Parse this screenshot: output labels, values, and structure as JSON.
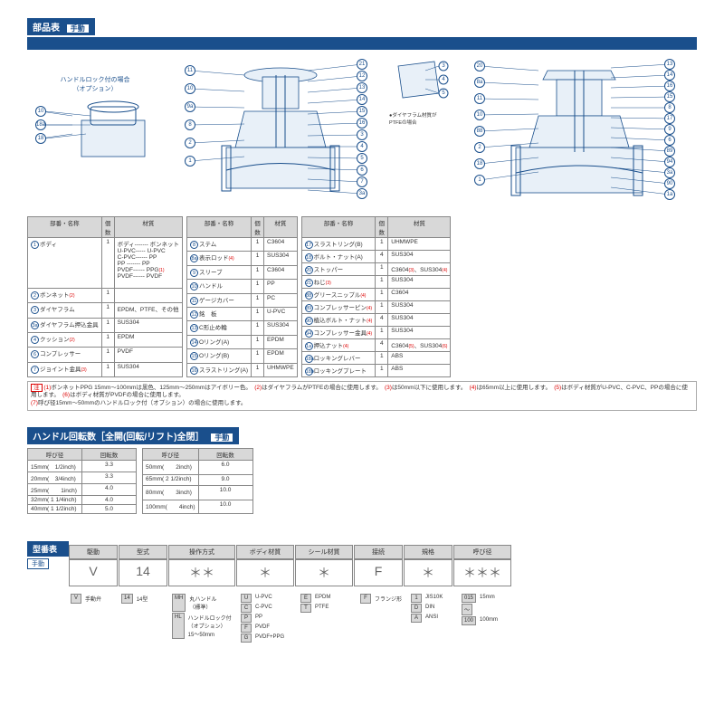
{
  "header": {
    "title": "部品表",
    "sub": "手動"
  },
  "diagram": {
    "left_caption": "ハンドルロック付の場合\n（オプション）",
    "small_note": "●ダイヤフラム材質が\nPTFEの場合",
    "left_callouts": [
      "10",
      "18a",
      "18"
    ],
    "mid_left": [
      "11",
      "10",
      "9a",
      "8",
      "2",
      "1"
    ],
    "mid_right": [
      "21",
      "12",
      "13",
      "14",
      "15",
      "16",
      "3",
      "4",
      "5",
      "6",
      "7",
      "3a"
    ],
    "right_left": [
      "20",
      "8a",
      "11",
      "10",
      "88",
      "2",
      "18",
      "1"
    ],
    "right_right": [
      "13",
      "14",
      "16",
      "15",
      "8",
      "17",
      "9",
      "6",
      "89",
      "94",
      "3a",
      "90",
      "1a"
    ]
  },
  "parts_tables": {
    "headers": [
      "部番・名称",
      "個数",
      "材質"
    ],
    "t1": [
      [
        "1",
        "ボディ",
        "1",
        "ボディ------- ボンネット\nU-PVC----- U-PVC\nC-PVC------ PP\nPP ------- PP\nPVDF------ PPG(1)\nPVDF------ PVDF"
      ],
      [
        "2",
        "ボンネット(2)",
        "1",
        ""
      ],
      [
        "3",
        "ダイヤフラム",
        "1",
        "EPDM、PTFE、その他"
      ],
      [
        "3a",
        "ダイヤフラム押込金具",
        "1",
        "SUS304"
      ],
      [
        "4",
        "クッション(2)",
        "1",
        "EPDM"
      ],
      [
        "6",
        "コンプレッサー",
        "1",
        "PVDF"
      ],
      [
        "7",
        "ジョイント金具(3)",
        "1",
        "SUS304"
      ]
    ],
    "t2": [
      [
        "8",
        "ステム",
        "1",
        "C3604"
      ],
      [
        "8a",
        "表示ロッド(4)",
        "1",
        "SUS304"
      ],
      [
        "9",
        "スリーブ",
        "1",
        "C3604"
      ],
      [
        "10",
        "ハンドル",
        "1",
        "PP"
      ],
      [
        "11",
        "ゲージカバー",
        "1",
        "PC"
      ],
      [
        "12",
        "銘　板",
        "1",
        "U-PVC"
      ],
      [
        "13",
        "C形止め輪",
        "1",
        "SUS304"
      ],
      [
        "14",
        "Oリング(A)",
        "1",
        "EPDM"
      ],
      [
        "15",
        "Oリング(B)",
        "1",
        "EPDM"
      ],
      [
        "16",
        "スラストリング(A)",
        "1",
        "UHMWPE"
      ]
    ],
    "t3": [
      [
        "17",
        "スラストリング(B)",
        "1",
        "UHMWPE"
      ],
      [
        "18",
        "ボルト・ナット(A)",
        "4",
        "SUS304"
      ],
      [
        "20",
        "ストッパー",
        "1",
        "C3604(3)、SUS304(4)"
      ],
      [
        "21",
        "ねじ(3)",
        "1",
        "SUS304"
      ],
      [
        "88",
        "グリースニップル(4)",
        "1",
        "C3604"
      ],
      [
        "89",
        "コンプレッサーピン(4)",
        "1",
        "SUS304"
      ],
      [
        "90",
        "植込ボルト・ナット(4)",
        "4",
        "SUS304"
      ],
      [
        "94",
        "コンプレッサー金具(4)",
        "1",
        "SUS304"
      ],
      [
        "1a",
        "押込ナット(4)",
        "4",
        "C3604(5)、SUS304(6)"
      ],
      [
        "18a",
        "ロッキングレバー",
        "1",
        "ABS"
      ],
      [
        "18b",
        "ロッキングプレート",
        "1",
        "ABS"
      ]
    ]
  },
  "notes_label": "注",
  "notes": "(1)ボンネットPPG 15mm〜100mmは黒色、125mm〜250mmはアイボリー色。　(2)はダイヤフラムがPTFEの場合に使用します。　(3)は50mm以下に使用します。　(4)は65mm以上に使用します。　(5)はボディ材質がU-PVC、C-PVC、PPの場合に使用します。　(6)はボディ材質がPVDFの場合に使用します。\n(7)呼び径15mm〜50mmのハンドルロック付（オプション）の場合に使用します。",
  "turns": {
    "title": "ハンドル回転数［全開(回転/リフト)全閉］",
    "sub": "手動",
    "headers": [
      "呼び径",
      "回転数"
    ],
    "t1": [
      [
        "15mm(　1/2inch)",
        "3.3"
      ],
      [
        "20mm(　3/4inch)",
        "3.3"
      ],
      [
        "25mm(　　1inch)",
        "4.0"
      ],
      [
        "32mm( 1 1/4inch)",
        "4.0"
      ],
      [
        "40mm( 1 1/2inch)",
        "5.0"
      ]
    ],
    "t2": [
      [
        "50mm(　　2inch)",
        "6.0"
      ],
      [
        "65mm( 2 1/2inch)",
        "9.0"
      ],
      [
        "80mm(　　3inch)",
        "10.0"
      ],
      [
        "100mm(　　4inch)",
        "10.0"
      ]
    ]
  },
  "model": {
    "title": "型番表",
    "sub": "手動",
    "cols": [
      {
        "head": "駆動",
        "big": "V",
        "w": 54
      },
      {
        "head": "型式",
        "big": "14",
        "w": 54
      },
      {
        "head": "操作方式",
        "big": "＊＊",
        "w": 74
      },
      {
        "head": "ボディ材質",
        "big": "＊",
        "w": 64
      },
      {
        "head": "シール材質",
        "big": "＊",
        "w": 64
      },
      {
        "head": "接続",
        "big": "F",
        "w": 54
      },
      {
        "head": "規格",
        "big": "＊",
        "w": 54
      },
      {
        "head": "呼び径",
        "big": "＊＊＊",
        "w": 64
      }
    ],
    "opts": {
      "drive": [
        [
          "V",
          "手動弁"
        ]
      ],
      "type": [
        [
          "14",
          "14型"
        ]
      ],
      "op": [
        [
          "MH",
          "丸ハンドル\n（標準）"
        ],
        [
          "HL",
          "ハンドルロック付\n（オプション）\n15〜50mm"
        ]
      ],
      "body": [
        [
          "U",
          "U-PVC"
        ],
        [
          "C",
          "C-PVC"
        ],
        [
          "P",
          "PP"
        ],
        [
          "F",
          "PVDF"
        ],
        [
          "G",
          "PVDF+PPG"
        ]
      ],
      "seal": [
        [
          "E",
          "EPDM"
        ],
        [
          "T",
          "PTFE"
        ]
      ],
      "conn": [
        [
          "F",
          "フランジ形"
        ]
      ],
      "std": [
        [
          "1",
          "JIS10K"
        ],
        [
          "D",
          "DIN"
        ],
        [
          "A",
          "ANSI"
        ]
      ],
      "size": [
        [
          "015",
          "15mm"
        ],
        [
          "〜",
          ""
        ],
        [
          "100",
          "100mm"
        ]
      ]
    }
  }
}
